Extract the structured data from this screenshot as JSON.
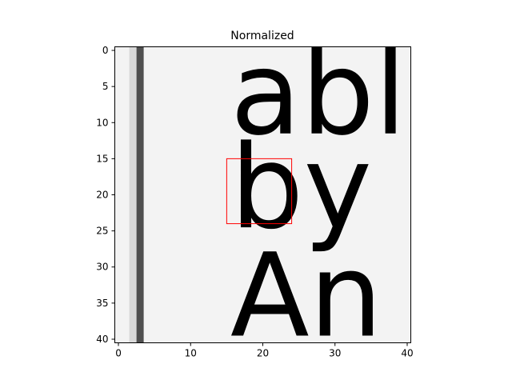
{
  "chart_data": {
    "type": "heatmap",
    "title": "Normalized",
    "xlim": [
      -0.5,
      40.5
    ],
    "ylim": [
      40.5,
      -0.5
    ],
    "y_inverted": true,
    "x_ticks": [
      0,
      10,
      20,
      30,
      40
    ],
    "x_tick_labels": [
      "0",
      "10",
      "20",
      "30",
      "40"
    ],
    "y_ticks": [
      0,
      5,
      10,
      15,
      20,
      25,
      30,
      35,
      40
    ],
    "y_tick_labels": [
      "0",
      "5",
      "10",
      "15",
      "20",
      "25",
      "30",
      "35",
      "40"
    ],
    "colormap": "grayscale",
    "content_description_text_lines": [
      "abl",
      "by",
      "An"
    ],
    "highlight_box": {
      "x_range": [
        15,
        24
      ],
      "y_range": [
        15,
        24
      ],
      "color": "#ff0000"
    }
  },
  "colors": {
    "background": "#ffffff",
    "axis": "#000000",
    "highlight": "#ff0000"
  }
}
